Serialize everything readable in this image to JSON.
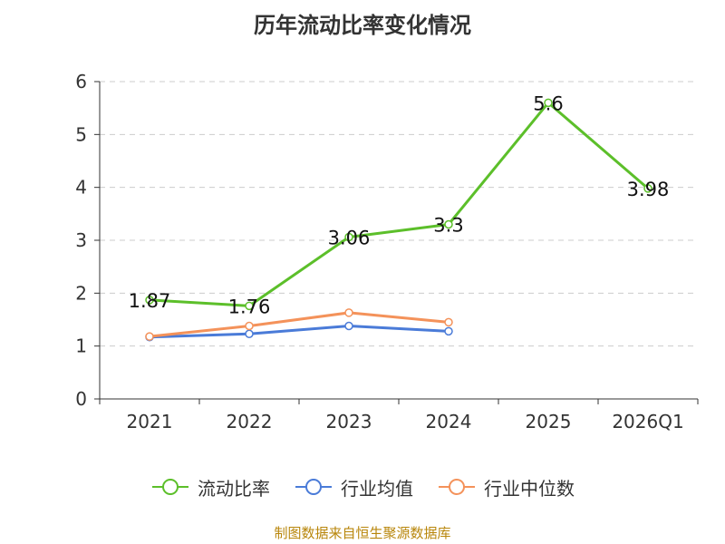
{
  "source_text": "制图数据来自恒生聚源数据库",
  "chart_data": {
    "type": "line",
    "title": "历年流动比率变化情况",
    "categories": [
      "2021",
      "2022",
      "2023",
      "2024",
      "2025",
      "2026Q1"
    ],
    "ylim": [
      0,
      6
    ],
    "yticks": [
      0,
      1,
      2,
      3,
      4,
      5,
      6
    ],
    "grid": true,
    "legend_position": "bottom",
    "series": [
      {
        "name": "流动比率",
        "color": "#5cbf2a",
        "values": [
          1.87,
          1.76,
          3.06,
          3.3,
          5.6,
          3.98
        ],
        "labels": [
          "1.87",
          "1.76",
          "3.06",
          "3.3",
          "5.6",
          "3.98"
        ]
      },
      {
        "name": "行业均值",
        "color": "#4a7bd8",
        "values": [
          1.17,
          1.23,
          1.38,
          1.28,
          null,
          null
        ]
      },
      {
        "name": "行业中位数",
        "color": "#f4925a",
        "values": [
          1.18,
          1.38,
          1.63,
          1.45,
          null,
          null
        ]
      }
    ]
  }
}
